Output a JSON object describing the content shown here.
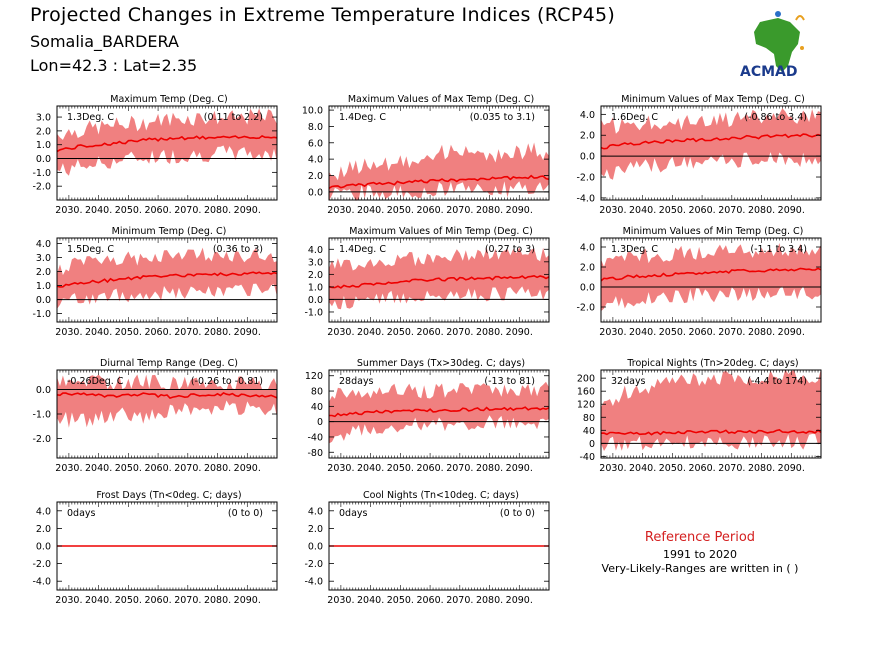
{
  "header": {
    "title": "Projected Changes in Extreme Temperature Indices (RCP45)",
    "location": "Somalia_BARDERA",
    "coords": "Lon=42.3 : Lat=2.35"
  },
  "logo": {
    "text": "ACMAD"
  },
  "reference": {
    "title": "Reference Period",
    "years": "1991 to 2020",
    "note": "Very-Likely-Ranges are written in ( )"
  },
  "colors": {
    "band": "#f08080",
    "line": "#ee0000",
    "zero": "#000000",
    "ref_title": "#d42020"
  },
  "x_ticks": [
    "2030.",
    "2040.",
    "2050.",
    "2060.",
    "2070.",
    "2080.",
    "2090."
  ],
  "chart_data": [
    {
      "type": "area",
      "title": "Maximum Temp (Deg. C)",
      "value_label": "1.3Deg. C",
      "range_label": "(0.11 to 2.2)",
      "x_range": [
        2026,
        2100
      ],
      "ylim": [
        -3.0,
        3.8
      ],
      "yticks": [
        "-2.0",
        "-1.0",
        "0.0",
        "1.0",
        "2.0",
        "3.0"
      ],
      "ytick_values": [
        -2,
        -1,
        0,
        1,
        2,
        3
      ],
      "x": [
        2026,
        2035,
        2045,
        2055,
        2065,
        2075,
        2085,
        2095,
        2100
      ],
      "median": [
        0.6,
        0.9,
        1.1,
        1.3,
        1.5,
        1.5,
        1.5,
        1.6,
        1.5
      ],
      "lower": [
        -0.9,
        -0.5,
        -0.2,
        0.1,
        0.2,
        0.3,
        0.4,
        0.3,
        0.2
      ],
      "upper": [
        1.8,
        2.1,
        2.4,
        2.6,
        2.9,
        3.0,
        2.9,
        3.1,
        3.0
      ]
    },
    {
      "type": "area",
      "title": "Maximum Values of Max Temp (Deg. C)",
      "value_label": "1.4Deg. C",
      "range_label": "(0.035 to 3.1)",
      "x_range": [
        2026,
        2100
      ],
      "ylim": [
        -1.0,
        10.5
      ],
      "yticks": [
        "0.0",
        "2.0",
        "4.0",
        "6.0",
        "8.0",
        "10.0"
      ],
      "ytick_values": [
        0,
        2,
        4,
        6,
        8,
        10
      ],
      "x": [
        2026,
        2035,
        2045,
        2055,
        2065,
        2075,
        2085,
        2095,
        2100
      ],
      "median": [
        0.5,
        0.8,
        1.0,
        1.2,
        1.4,
        1.6,
        1.7,
        1.8,
        1.7
      ],
      "lower": [
        -0.2,
        -0.1,
        0.0,
        0.1,
        0.2,
        0.3,
        0.3,
        0.4,
        0.3
      ],
      "upper": [
        2.0,
        3.0,
        3.5,
        4.0,
        5.0,
        4.5,
        4.5,
        5.0,
        4.5
      ]
    },
    {
      "type": "area",
      "title": "Minimum Values of Max Temp (Deg. C)",
      "value_label": "1.6Deg. C",
      "range_label": "(-0.86 to 3.4)",
      "x_range": [
        2026,
        2100
      ],
      "ylim": [
        -4.2,
        4.8
      ],
      "yticks": [
        "-4.0",
        "-2.0",
        "0.0",
        "2.0",
        "4.0"
      ],
      "ytick_values": [
        -4,
        -2,
        0,
        2,
        4
      ],
      "x": [
        2026,
        2035,
        2045,
        2055,
        2065,
        2075,
        2085,
        2095,
        2100
      ],
      "median": [
        0.8,
        1.2,
        1.4,
        1.5,
        1.7,
        1.8,
        1.9,
        2.0,
        1.9
      ],
      "lower": [
        -1.8,
        -1.2,
        -0.9,
        -0.6,
        -0.5,
        -0.4,
        -0.4,
        -0.3,
        -0.4
      ],
      "upper": [
        2.8,
        3.0,
        3.2,
        3.3,
        3.5,
        3.6,
        3.8,
        3.8,
        3.7
      ]
    },
    {
      "type": "area",
      "title": "Minimum Temp (Deg. C)",
      "value_label": "1.5Deg. C",
      "range_label": "(0.36 to 3)",
      "x_range": [
        2026,
        2100
      ],
      "ylim": [
        -1.6,
        4.4
      ],
      "yticks": [
        "-1.0",
        "0.0",
        "1.0",
        "2.0",
        "3.0",
        "4.0"
      ],
      "ytick_values": [
        -1,
        0,
        1,
        2,
        3,
        4
      ],
      "x": [
        2026,
        2035,
        2045,
        2055,
        2065,
        2075,
        2085,
        2095,
        2100
      ],
      "median": [
        0.9,
        1.2,
        1.4,
        1.6,
        1.7,
        1.8,
        1.8,
        1.9,
        1.9
      ],
      "lower": [
        -0.2,
        0.1,
        0.3,
        0.4,
        0.5,
        0.6,
        0.6,
        0.7,
        0.6
      ],
      "upper": [
        2.2,
        2.6,
        2.8,
        3.0,
        3.1,
        3.2,
        3.2,
        3.2,
        3.1
      ]
    },
    {
      "type": "area",
      "title": "Maximum Values of Min Temp (Deg. C)",
      "value_label": "1.4Deg. C",
      "range_label": "(0.27 to 3)",
      "x_range": [
        2026,
        2100
      ],
      "ylim": [
        -1.8,
        4.9
      ],
      "yticks": [
        "-1.0",
        "0.0",
        "1.0",
        "2.0",
        "3.0",
        "4.0"
      ],
      "ytick_values": [
        -1,
        0,
        1,
        2,
        3,
        4
      ],
      "x": [
        2026,
        2035,
        2045,
        2055,
        2065,
        2075,
        2085,
        2095,
        2100
      ],
      "median": [
        0.9,
        1.1,
        1.3,
        1.5,
        1.6,
        1.7,
        1.7,
        1.8,
        1.7
      ],
      "lower": [
        -0.3,
        -0.1,
        0.1,
        0.3,
        0.4,
        0.4,
        0.5,
        0.5,
        0.4
      ],
      "upper": [
        2.6,
        2.9,
        3.1,
        3.2,
        3.4,
        3.6,
        3.6,
        3.7,
        3.5
      ]
    },
    {
      "type": "area",
      "title": "Minimum Values of Min Temp (Deg. C)",
      "value_label": "1.3Deg. C",
      "range_label": "(-1.1 to 3.4)",
      "x_range": [
        2026,
        2100
      ],
      "ylim": [
        -3.5,
        4.9
      ],
      "yticks": [
        "-2.0",
        "0.0",
        "2.0",
        "4.0"
      ],
      "ytick_values": [
        -2,
        0,
        2,
        4
      ],
      "x": [
        2026,
        2035,
        2045,
        2055,
        2065,
        2075,
        2085,
        2095,
        2100
      ],
      "median": [
        0.7,
        1.0,
        1.2,
        1.3,
        1.5,
        1.6,
        1.7,
        1.8,
        1.7
      ],
      "lower": [
        -1.8,
        -1.4,
        -1.1,
        -0.9,
        -0.8,
        -0.7,
        -0.6,
        -0.6,
        -0.7
      ],
      "upper": [
        2.6,
        3.0,
        3.2,
        3.4,
        3.5,
        3.6,
        3.7,
        3.8,
        3.6
      ]
    },
    {
      "type": "area",
      "title": "Diurnal Temp Range (Deg. C)",
      "value_label": "-0.26Deg. C",
      "range_label": "(-0.26 to -0.81)",
      "x_range": [
        2026,
        2100
      ],
      "ylim": [
        -2.8,
        0.8
      ],
      "yticks": [
        "-2.0",
        "-1.0",
        "0.0"
      ],
      "ytick_values": [
        -2,
        -1,
        0
      ],
      "x": [
        2026,
        2035,
        2045,
        2055,
        2065,
        2075,
        2085,
        2095,
        2100
      ],
      "median": [
        -0.2,
        -0.2,
        -0.3,
        -0.2,
        -0.3,
        -0.2,
        -0.2,
        -0.3,
        -0.3
      ],
      "lower": [
        -1.2,
        -1.3,
        -1.0,
        -1.1,
        -0.8,
        -0.9,
        -0.7,
        -0.8,
        -0.9
      ],
      "upper": [
        0.3,
        0.3,
        0.3,
        0.3,
        0.3,
        0.3,
        0.3,
        0.3,
        0.3
      ]
    },
    {
      "type": "area",
      "title": "Summer Days (Tx>30deg. C; days)",
      "value_label": "28days",
      "range_label": "(-13 to 81)",
      "x_range": [
        2026,
        2100
      ],
      "ylim": [
        -95,
        135
      ],
      "yticks": [
        "-80",
        "-40",
        "0",
        "40",
        "80",
        "120"
      ],
      "ytick_values": [
        -80,
        -40,
        0,
        40,
        80,
        120
      ],
      "x": [
        2026,
        2035,
        2045,
        2055,
        2065,
        2075,
        2085,
        2095,
        2100
      ],
      "median": [
        15,
        22,
        26,
        28,
        30,
        32,
        34,
        35,
        34
      ],
      "lower": [
        -40,
        -25,
        -15,
        -10,
        -5,
        -5,
        0,
        0,
        -5
      ],
      "upper": [
        70,
        75,
        78,
        80,
        82,
        84,
        85,
        86,
        84
      ]
    },
    {
      "type": "area",
      "title": "Tropical Nights (Tn>20deg. C; days)",
      "value_label": "32days",
      "range_label": "(-4.4 to 174)",
      "x_range": [
        2026,
        2100
      ],
      "ylim": [
        -45,
        225
      ],
      "yticks": [
        "-40",
        "0",
        "40",
        "80",
        "120",
        "160",
        "200"
      ],
      "ytick_values": [
        -40,
        0,
        40,
        80,
        120,
        160,
        200
      ],
      "x": [
        2026,
        2035,
        2045,
        2055,
        2065,
        2075,
        2085,
        2095,
        2100
      ],
      "median": [
        28,
        30,
        32,
        34,
        35,
        36,
        37,
        36,
        35
      ],
      "lower": [
        -5,
        -2,
        0,
        2,
        3,
        4,
        5,
        5,
        4
      ],
      "upper": [
        120,
        160,
        180,
        190,
        200,
        205,
        205,
        210,
        205
      ]
    },
    {
      "type": "area",
      "title": "Frost Days (Tn<0deg. C; days)",
      "value_label": "0days",
      "range_label": "(0 to 0)",
      "x_range": [
        2026,
        2100
      ],
      "ylim": [
        -5.0,
        5.0
      ],
      "yticks": [
        "-4.0",
        "-2.0",
        "0.0",
        "2.0",
        "4.0"
      ],
      "ytick_values": [
        -4,
        -2,
        0,
        2,
        4
      ],
      "x": [
        2026,
        2100
      ],
      "median": [
        0,
        0
      ],
      "lower": [
        0,
        0
      ],
      "upper": [
        0,
        0
      ]
    },
    {
      "type": "area",
      "title": "Cool Nights (Tn<10deg. C; days)",
      "value_label": "0days",
      "range_label": "(0 to 0)",
      "x_range": [
        2026,
        2100
      ],
      "ylim": [
        -5.0,
        5.0
      ],
      "yticks": [
        "-4.0",
        "-2.0",
        "0.0",
        "2.0",
        "4.0"
      ],
      "ytick_values": [
        -4,
        -2,
        0,
        2,
        4
      ],
      "x": [
        2026,
        2100
      ],
      "median": [
        0,
        0
      ],
      "lower": [
        0,
        0
      ],
      "upper": [
        0,
        0
      ]
    }
  ]
}
